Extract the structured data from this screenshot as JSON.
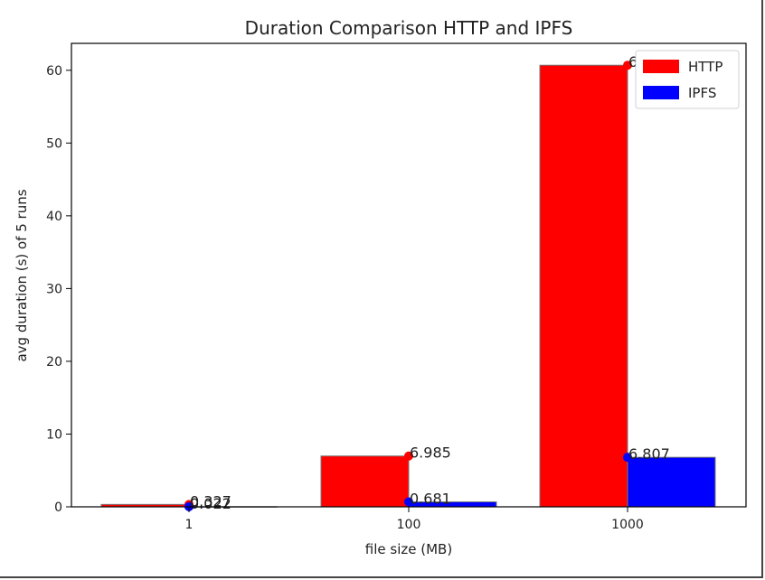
{
  "chart_data": {
    "type": "bar",
    "title": "Duration Comparison HTTP and IPFS",
    "xlabel": "file size (MB)",
    "ylabel": "avg duration (s) of 5 runs",
    "categories": [
      "1",
      "100",
      "1000"
    ],
    "series": [
      {
        "name": "HTTP",
        "values": [
          0.327,
          6.985,
          60.694
        ],
        "labels": [
          "0.327",
          "6.985",
          "60.694"
        ],
        "color": "#ff0000"
      },
      {
        "name": "IPFS",
        "values": [
          0.022,
          0.681,
          6.807
        ],
        "labels": [
          "0.022",
          "0.681",
          "6.807"
        ],
        "color": "#0000ff"
      }
    ],
    "ylim": [
      0,
      63.7
    ],
    "yticks": [
      "0",
      "10",
      "20",
      "30",
      "40",
      "50",
      "60"
    ],
    "legend": "top-right",
    "grid": false
  }
}
